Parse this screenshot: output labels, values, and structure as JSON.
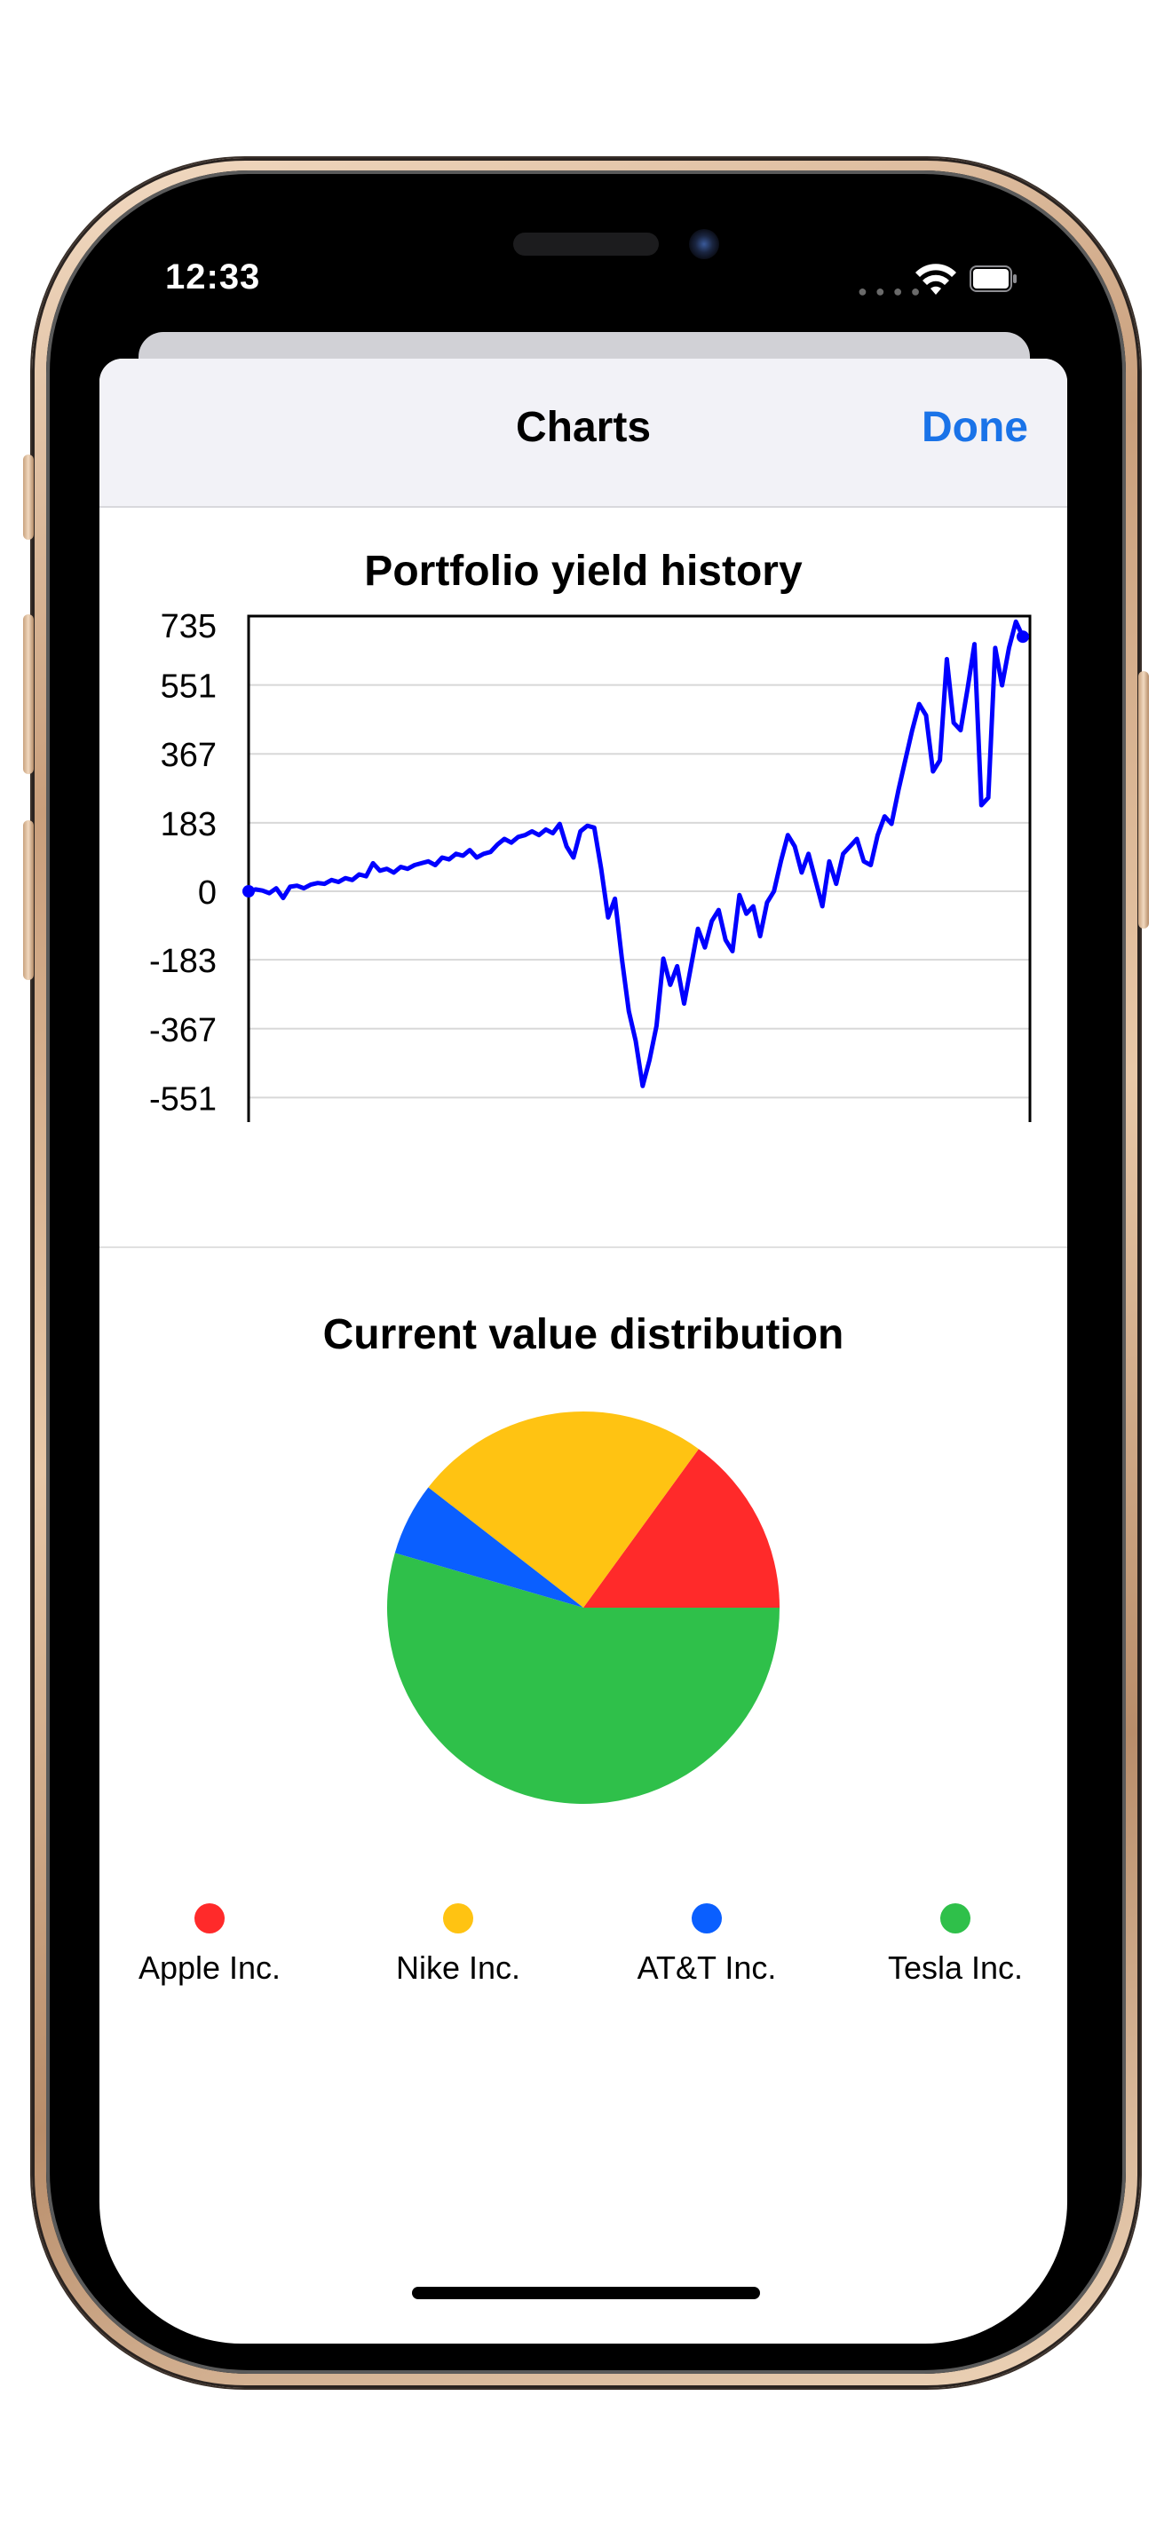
{
  "status_bar": {
    "time": "12:33"
  },
  "nav": {
    "title": "Charts",
    "done_label": "Done"
  },
  "line_section": {
    "title": "Portfolio yield history"
  },
  "pie_section": {
    "title": "Current value distribution"
  },
  "colors": {
    "accent": "#1a73e8",
    "line": "#0000ff",
    "red": "#ff2a2a",
    "yellow": "#ffc312",
    "blue": "#0a5fff",
    "green": "#2fc04a"
  },
  "chart_data": [
    {
      "type": "line",
      "title": "Portfolio yield history",
      "y_ticks": [
        "735",
        "551",
        "367",
        "183",
        "0",
        "-183",
        "-367",
        "-551"
      ],
      "ylim": [
        -735,
        735
      ],
      "grid": true,
      "series": [
        {
          "values": [
            0,
            5,
            2,
            -5,
            8,
            -18,
            12,
            15,
            8,
            18,
            22,
            20,
            30,
            25,
            35,
            30,
            45,
            40,
            75,
            55,
            60,
            50,
            65,
            60,
            70,
            75,
            80,
            70,
            90,
            85,
            100,
            95,
            110,
            90,
            100,
            105,
            125,
            140,
            130,
            145,
            150,
            160,
            150,
            165,
            155,
            180,
            120,
            90,
            160,
            175,
            170,
            60,
            -70,
            -20,
            -180,
            -320,
            -400,
            -520,
            -450,
            -360,
            -180,
            -250,
            -200,
            -300,
            -200,
            -100,
            -150,
            -80,
            -50,
            -130,
            -160,
            -10,
            -60,
            -40,
            -120,
            -30,
            0,
            80,
            150,
            120,
            50,
            100,
            30,
            -40,
            80,
            20,
            100,
            120,
            140,
            80,
            70,
            150,
            200,
            180,
            270,
            350,
            430,
            500,
            470,
            320,
            350,
            620,
            450,
            430,
            540,
            660,
            230,
            250,
            650,
            550,
            650,
            720,
            680
          ]
        }
      ]
    },
    {
      "type": "pie",
      "title": "Current value distribution",
      "slices": [
        {
          "name": "Apple Inc.",
          "value": 15,
          "color": "#ff2a2a"
        },
        {
          "name": "Nike Inc.",
          "value": 24.5,
          "color": "#ffc312"
        },
        {
          "name": "AT&T Inc.",
          "value": 6,
          "color": "#0a5fff"
        },
        {
          "name": "Tesla Inc.",
          "value": 54.5,
          "color": "#2fc04a"
        }
      ]
    }
  ],
  "legend": [
    {
      "label": "Apple Inc.",
      "color": "#ff2a2a"
    },
    {
      "label": "Nike Inc.",
      "color": "#ffc312"
    },
    {
      "label": "AT&T Inc.",
      "color": "#0a5fff"
    },
    {
      "label": "Tesla Inc.",
      "color": "#2fc04a"
    }
  ]
}
